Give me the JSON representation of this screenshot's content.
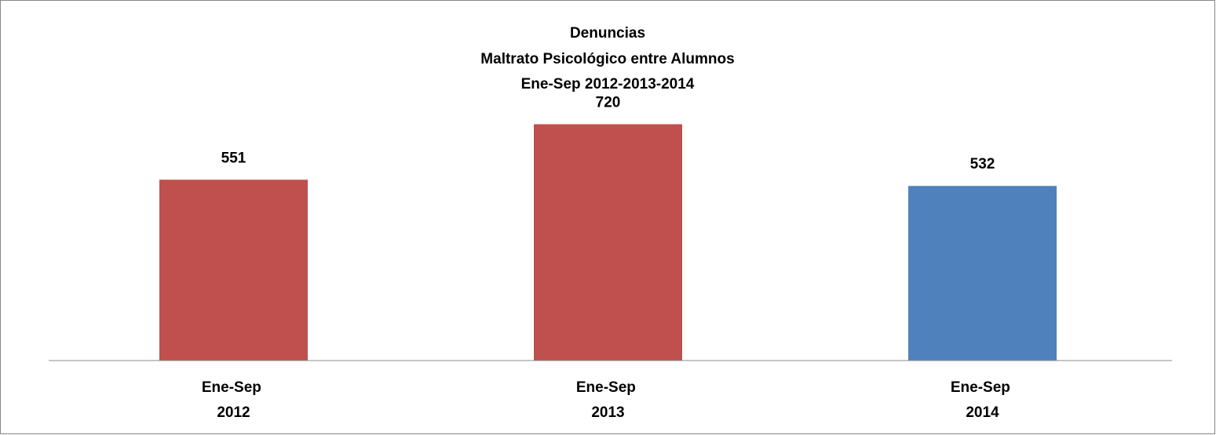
{
  "chart_data": {
    "type": "bar",
    "title": [
      "Denuncias",
      "Maltrato Psicológico entre Alumnos",
      "Ene-Sep 2012-2013-2014"
    ],
    "categories": [
      "Ene-Sep 2012",
      "Ene-Sep 2013",
      "Ene-Sep 2014"
    ],
    "values": [
      551,
      720,
      532
    ],
    "colors": [
      "#c0504d",
      "#c0504d",
      "#4f81bd"
    ],
    "ylim": [
      0,
      800
    ]
  }
}
